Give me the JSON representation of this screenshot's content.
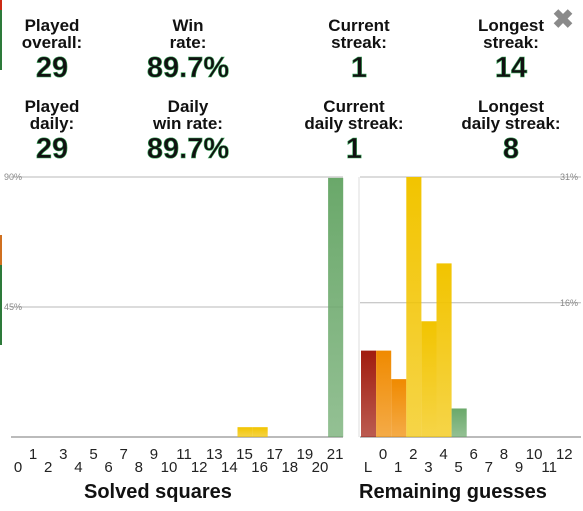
{
  "close": {
    "icon": "close-icon",
    "symbol": "✖"
  },
  "stats": [
    {
      "label": "Played\noverall:",
      "value": "29"
    },
    {
      "label": "Win\nrate:",
      "value": "89.7%"
    },
    {
      "label": "Current\nstreak:",
      "value": "1"
    },
    {
      "label": "Longest\nstreak:",
      "value": "14"
    },
    {
      "label": "Played\ndaily:",
      "value": "29"
    },
    {
      "label": "Daily\nwin rate:",
      "value": "89.7%"
    },
    {
      "label": "Current\ndaily streak:",
      "value": "1"
    },
    {
      "label": "Longest\ndaily streak:",
      "value": "8"
    }
  ],
  "chart_data": [
    {
      "type": "bar",
      "xlabel": "Solved squares",
      "ylabel": "",
      "ylim": [
        0,
        90
      ],
      "grid": true,
      "gridlines": [
        {
          "value": 90,
          "label": "90%"
        },
        {
          "value": 45,
          "label": "45%"
        }
      ],
      "categories": [
        "0",
        "1",
        "2",
        "3",
        "4",
        "5",
        "6",
        "7",
        "8",
        "9",
        "10",
        "11",
        "12",
        "13",
        "14",
        "15",
        "16",
        "17",
        "18",
        "19",
        "20",
        "21"
      ],
      "values": [
        0,
        0,
        0,
        0,
        0,
        0,
        0,
        0,
        0,
        0,
        0,
        0,
        0,
        0,
        0,
        3.4,
        3.4,
        0,
        0,
        0,
        0,
        89.7
      ],
      "colors": {
        "15": "#f2c400",
        "16": "#f2c400",
        "21": "#6aa86a"
      }
    },
    {
      "type": "bar",
      "xlabel": "Remaining guesses",
      "ylabel": "",
      "ylim": [
        0,
        31
      ],
      "grid": true,
      "gridlines": [
        {
          "value": 31,
          "label": "31%"
        },
        {
          "value": 16,
          "label": "16%"
        }
      ],
      "categories": [
        "L",
        "0",
        "1",
        "2",
        "3",
        "4",
        "5",
        "6",
        "7",
        "8",
        "9",
        "10",
        "11",
        "12"
      ],
      "values": [
        10.3,
        10.3,
        6.9,
        31,
        13.8,
        20.7,
        3.4,
        0,
        0,
        0,
        0,
        0,
        0,
        0
      ],
      "colors": {
        "L": "#a11c0e",
        "0": "#f08a00",
        "1": "#f08a00",
        "2": "#f2c400",
        "3": "#f2c400",
        "4": "#f2c400",
        "5": "#6aa86a"
      }
    }
  ]
}
